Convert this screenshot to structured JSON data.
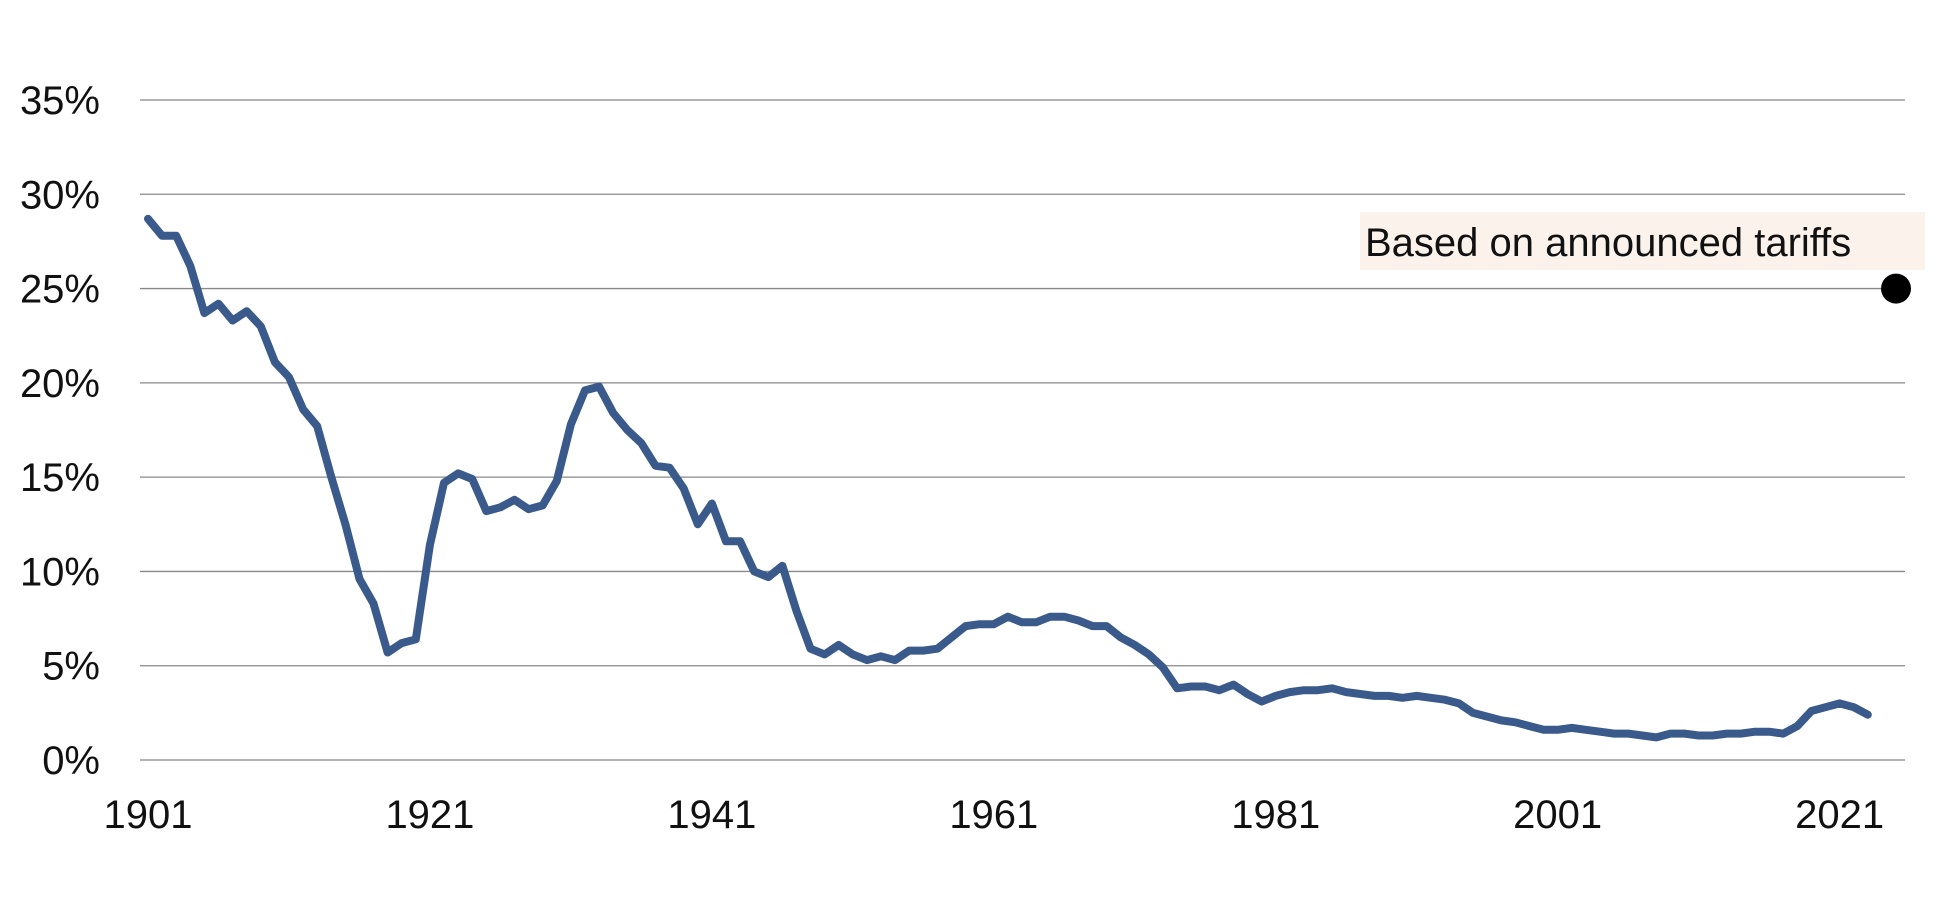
{
  "chart_data": {
    "type": "line",
    "title": "",
    "xlabel": "",
    "ylabel": "",
    "xlim": [
      1901,
      2025
    ],
    "ylim": [
      0,
      35
    ],
    "grid": true,
    "y_ticks": [
      "0%",
      "5%",
      "10%",
      "15%",
      "20%",
      "25%",
      "30%",
      "35%"
    ],
    "y_tick_values": [
      0,
      5,
      10,
      15,
      20,
      25,
      30,
      35
    ],
    "x_ticks": [
      "1901",
      "1921",
      "1941",
      "1961",
      "1981",
      "2001",
      "2021"
    ],
    "x_tick_values": [
      1901,
      1921,
      1941,
      1961,
      1981,
      2001,
      2021
    ],
    "series": [
      {
        "color": "#3a5a8c",
        "points": [
          [
            1901,
            28.7
          ],
          [
            1902,
            27.8
          ],
          [
            1903,
            27.8
          ],
          [
            1904,
            26.2
          ],
          [
            1905,
            23.7
          ],
          [
            1906,
            24.2
          ],
          [
            1907,
            23.3
          ],
          [
            1908,
            23.8
          ],
          [
            1909,
            23.0
          ],
          [
            1910,
            21.1
          ],
          [
            1911,
            20.3
          ],
          [
            1912,
            18.6
          ],
          [
            1913,
            17.7
          ],
          [
            1914,
            15.0
          ],
          [
            1915,
            12.5
          ],
          [
            1916,
            9.6
          ],
          [
            1917,
            8.3
          ],
          [
            1918,
            5.7
          ],
          [
            1919,
            6.2
          ],
          [
            1920,
            6.4
          ],
          [
            1921,
            11.4
          ],
          [
            1922,
            14.7
          ],
          [
            1923,
            15.2
          ],
          [
            1924,
            14.9
          ],
          [
            1925,
            13.2
          ],
          [
            1926,
            13.4
          ],
          [
            1927,
            13.8
          ],
          [
            1928,
            13.3
          ],
          [
            1929,
            13.5
          ],
          [
            1930,
            14.8
          ],
          [
            1931,
            17.8
          ],
          [
            1932,
            19.6
          ],
          [
            1933,
            19.8
          ],
          [
            1934,
            18.4
          ],
          [
            1935,
            17.5
          ],
          [
            1936,
            16.8
          ],
          [
            1937,
            15.6
          ],
          [
            1938,
            15.5
          ],
          [
            1939,
            14.4
          ],
          [
            1940,
            12.5
          ],
          [
            1941,
            13.6
          ],
          [
            1942,
            11.6
          ],
          [
            1943,
            11.6
          ],
          [
            1944,
            10.0
          ],
          [
            1945,
            9.7
          ],
          [
            1946,
            10.3
          ],
          [
            1947,
            7.9
          ],
          [
            1948,
            5.9
          ],
          [
            1949,
            5.6
          ],
          [
            1950,
            6.1
          ],
          [
            1951,
            5.6
          ],
          [
            1952,
            5.3
          ],
          [
            1953,
            5.5
          ],
          [
            1954,
            5.3
          ],
          [
            1955,
            5.8
          ],
          [
            1956,
            5.8
          ],
          [
            1957,
            5.9
          ],
          [
            1958,
            6.5
          ],
          [
            1959,
            7.1
          ],
          [
            1960,
            7.2
          ],
          [
            1961,
            7.2
          ],
          [
            1962,
            7.6
          ],
          [
            1963,
            7.3
          ],
          [
            1964,
            7.3
          ],
          [
            1965,
            7.6
          ],
          [
            1966,
            7.6
          ],
          [
            1967,
            7.4
          ],
          [
            1968,
            7.1
          ],
          [
            1969,
            7.1
          ],
          [
            1970,
            6.5
          ],
          [
            1971,
            6.1
          ],
          [
            1972,
            5.6
          ],
          [
            1973,
            4.9
          ],
          [
            1974,
            3.8
          ],
          [
            1975,
            3.9
          ],
          [
            1976,
            3.9
          ],
          [
            1977,
            3.7
          ],
          [
            1978,
            4.0
          ],
          [
            1979,
            3.5
          ],
          [
            1980,
            3.1
          ],
          [
            1981,
            3.4
          ],
          [
            1982,
            3.6
          ],
          [
            1983,
            3.7
          ],
          [
            1984,
            3.7
          ],
          [
            1985,
            3.8
          ],
          [
            1986,
            3.6
          ],
          [
            1987,
            3.5
          ],
          [
            1988,
            3.4
          ],
          [
            1989,
            3.4
          ],
          [
            1990,
            3.3
          ],
          [
            1991,
            3.4
          ],
          [
            1992,
            3.3
          ],
          [
            1993,
            3.2
          ],
          [
            1994,
            3.0
          ],
          [
            1995,
            2.5
          ],
          [
            1996,
            2.3
          ],
          [
            1997,
            2.1
          ],
          [
            1998,
            2.0
          ],
          [
            1999,
            1.8
          ],
          [
            2000,
            1.6
          ],
          [
            2001,
            1.6
          ],
          [
            2002,
            1.7
          ],
          [
            2003,
            1.6
          ],
          [
            2004,
            1.5
          ],
          [
            2005,
            1.4
          ],
          [
            2006,
            1.4
          ],
          [
            2007,
            1.3
          ],
          [
            2008,
            1.2
          ],
          [
            2009,
            1.4
          ],
          [
            2010,
            1.4
          ],
          [
            2011,
            1.3
          ],
          [
            2012,
            1.3
          ],
          [
            2013,
            1.4
          ],
          [
            2014,
            1.4
          ],
          [
            2015,
            1.5
          ],
          [
            2016,
            1.5
          ],
          [
            2017,
            1.4
          ],
          [
            2018,
            1.8
          ],
          [
            2019,
            2.6
          ],
          [
            2020,
            2.8
          ],
          [
            2021,
            3.0
          ],
          [
            2022,
            2.8
          ],
          [
            2023,
            2.4
          ]
        ]
      }
    ],
    "marker": {
      "x": 2025,
      "y": 25,
      "color": "#000000"
    },
    "annotation": {
      "text": "Based on announced tariffs",
      "background": "#fbf2ec"
    },
    "colors": {
      "grid": "#888888",
      "line": "#3a5a8c",
      "text": "#111111"
    }
  }
}
